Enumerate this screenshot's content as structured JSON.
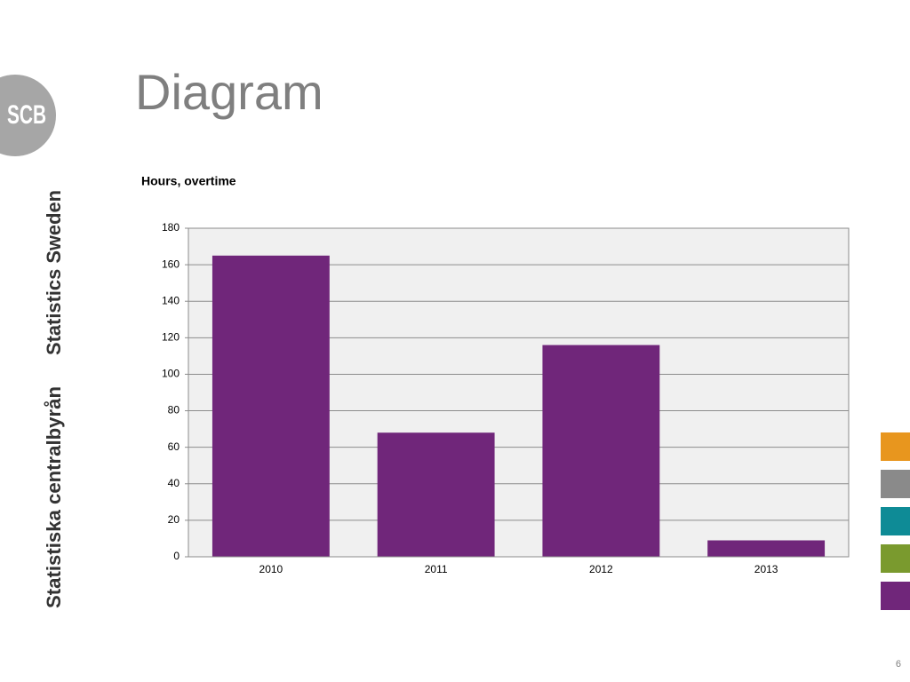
{
  "slide": {
    "title": "Diagram",
    "page_number": "6"
  },
  "logo": {
    "text": "SCB",
    "name_en": "Statistics Sweden",
    "name_sv": "Statistiska centralbyrån"
  },
  "chart_data": {
    "type": "bar",
    "title": "Hours, overtime",
    "categories": [
      "2010",
      "2011",
      "2012",
      "2013"
    ],
    "values": [
      165,
      68,
      116,
      9
    ],
    "color": "#70267a",
    "ylim": [
      0,
      180
    ],
    "yticks": [
      0,
      20,
      40,
      60,
      80,
      100,
      120,
      140,
      160,
      180
    ],
    "grid": true
  }
}
